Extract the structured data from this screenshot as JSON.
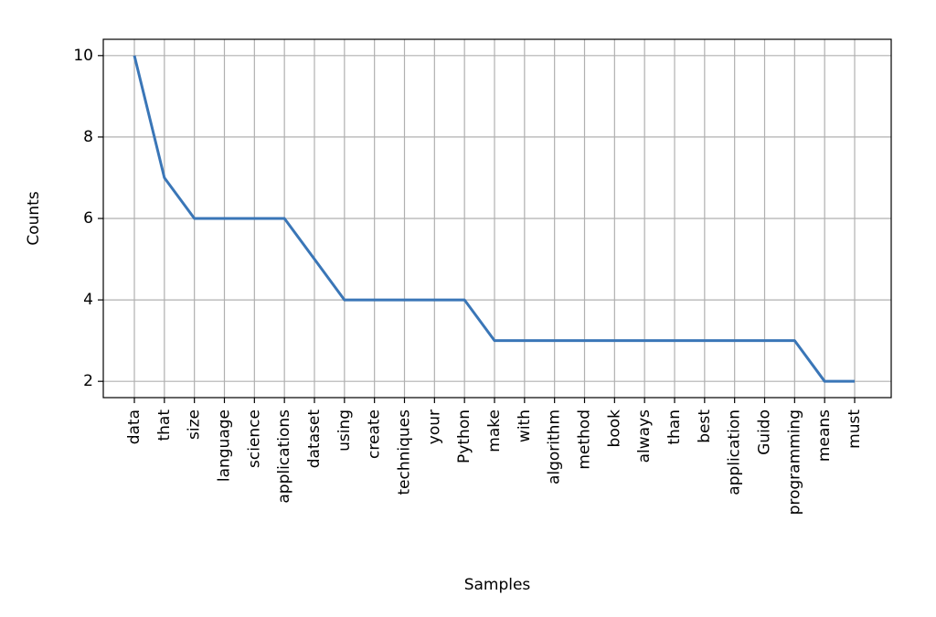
{
  "chart_data": {
    "type": "line",
    "xlabel": "Samples",
    "ylabel": "Counts",
    "categories": [
      "data",
      "that",
      "size",
      "language",
      "science",
      "applications",
      "dataset",
      "using",
      "create",
      "techniques",
      "your",
      "Python",
      "make",
      "with",
      "algorithm",
      "method",
      "book",
      "always",
      "than",
      "best",
      "application",
      "Guido",
      "programming",
      "means",
      "must"
    ],
    "series": [
      {
        "values": [
          10,
          7,
          6,
          6,
          6,
          6,
          5,
          4,
          4,
          4,
          4,
          4,
          3,
          3,
          3,
          3,
          3,
          3,
          3,
          3,
          3,
          3,
          3,
          2,
          2
        ]
      }
    ],
    "ylim": [
      1.6,
      10.4
    ],
    "yticks": [
      2,
      4,
      6,
      8,
      10
    ],
    "grid": true,
    "line_color": "#3a76b7"
  }
}
